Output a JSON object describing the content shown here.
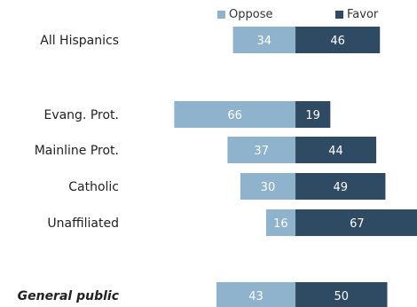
{
  "chart_data": {
    "type": "bar",
    "orientation": "horizontal",
    "stacked": "diverging",
    "categories": [
      "All Hispanics",
      "Evang. Prot.",
      "Mainline Prot.",
      "Catholic",
      "Unaffiliated",
      "General public"
    ],
    "series": [
      {
        "name": "Oppose",
        "values": [
          34,
          66,
          37,
          30,
          16,
          43
        ],
        "color": "#8fb3cd"
      },
      {
        "name": "Favor",
        "values": [
          46,
          19,
          44,
          49,
          67,
          50
        ],
        "color": "#2f4a63"
      }
    ],
    "legend_position": "top-right",
    "emphasized_category": "General public"
  }
}
